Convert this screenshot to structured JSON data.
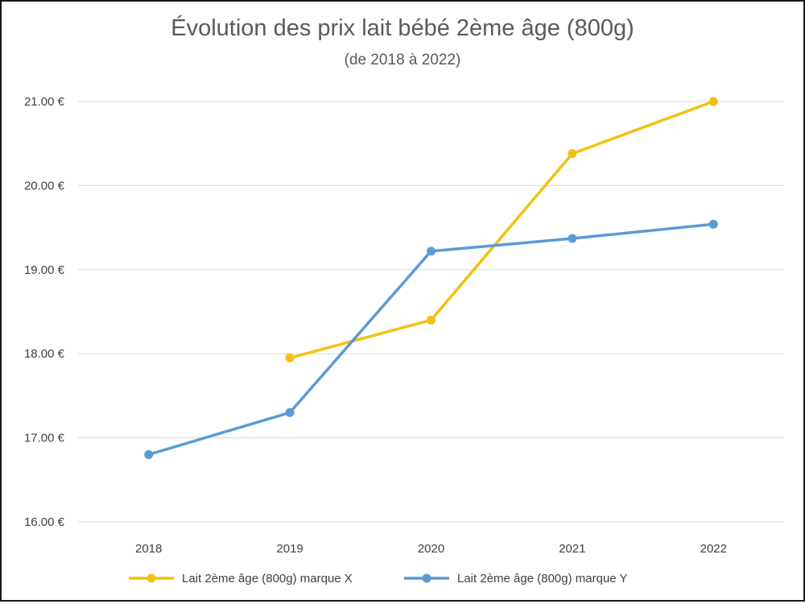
{
  "chart_data": {
    "type": "line",
    "title": "Évolution des prix lait bébé 2ème âge (800g)",
    "subtitle": "(de 2018 à 2022)",
    "xlabel": "",
    "ylabel": "",
    "categories": [
      "2018",
      "2019",
      "2020",
      "2021",
      "2022"
    ],
    "ylim": [
      16,
      21
    ],
    "yticks": [
      16,
      17,
      18,
      19,
      20,
      21
    ],
    "ytick_labels": [
      "16.00 €",
      "17.00 €",
      "18.00 €",
      "19.00 €",
      "20.00 €",
      "21.00 €"
    ],
    "grid": true,
    "legend_position": "bottom",
    "series": [
      {
        "name": "Lait 2ème âge (800g) marque X",
        "color": "#f2c10f",
        "values": [
          null,
          17.95,
          18.4,
          20.38,
          21.0
        ]
      },
      {
        "name": "Lait 2ème âge (800g) marque Y",
        "color": "#5b9bd5",
        "values": [
          16.8,
          17.3,
          19.22,
          19.37,
          19.54
        ]
      }
    ]
  }
}
